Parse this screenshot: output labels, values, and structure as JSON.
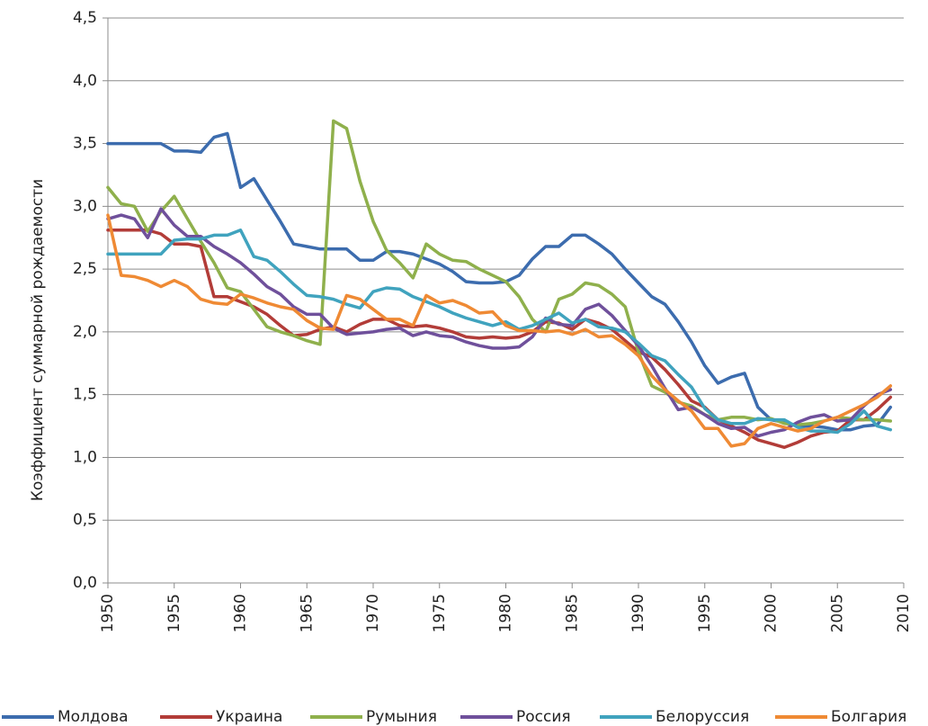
{
  "chart_data": {
    "type": "line",
    "y_label": "Коэффициент суммарной рождаемости",
    "x": [
      1950,
      1951,
      1952,
      1953,
      1954,
      1955,
      1956,
      1957,
      1958,
      1959,
      1960,
      1961,
      1962,
      1963,
      1964,
      1965,
      1966,
      1967,
      1968,
      1969,
      1970,
      1971,
      1972,
      1973,
      1974,
      1975,
      1976,
      1977,
      1978,
      1979,
      1980,
      1981,
      1982,
      1983,
      1984,
      1985,
      1986,
      1987,
      1988,
      1989,
      1990,
      1991,
      1992,
      1993,
      1994,
      1995,
      1996,
      1997,
      1998,
      1999,
      2000,
      2001,
      2002,
      2003,
      2004,
      2005,
      2006,
      2007,
      2008,
      2009
    ],
    "xlim": [
      1950,
      2010
    ],
    "xticks": [
      1950,
      1955,
      1960,
      1965,
      1970,
      1975,
      1980,
      1985,
      1990,
      1995,
      2000,
      2005,
      2010
    ],
    "ylim": [
      0,
      4.5
    ],
    "yticks": [
      {
        "value": 0,
        "label": "0,0"
      },
      {
        "value": 0.5,
        "label": "0,5"
      },
      {
        "value": 1,
        "label": "1,0"
      },
      {
        "value": 1.5,
        "label": "1,5"
      },
      {
        "value": 2,
        "label": "2,0"
      },
      {
        "value": 2.5,
        "label": "2,5"
      },
      {
        "value": 3,
        "label": "3,0"
      },
      {
        "value": 3.5,
        "label": "3,5"
      },
      {
        "value": 4,
        "label": "4,0"
      },
      {
        "value": 4.5,
        "label": "4,5"
      }
    ],
    "grid": true,
    "legend": "bottom",
    "series": [
      {
        "name": "Молдова",
        "color": "#3c6cae",
        "values": [
          3.5,
          3.5,
          3.5,
          3.5,
          3.5,
          3.44,
          3.44,
          3.43,
          3.55,
          3.58,
          3.15,
          3.22,
          3.05,
          2.88,
          2.7,
          2.68,
          2.66,
          2.66,
          2.66,
          2.57,
          2.57,
          2.64,
          2.64,
          2.62,
          2.58,
          2.54,
          2.48,
          2.4,
          2.39,
          2.39,
          2.4,
          2.45,
          2.58,
          2.68,
          2.68,
          2.77,
          2.77,
          2.7,
          2.62,
          2.5,
          2.39,
          2.28,
          2.22,
          2.08,
          1.92,
          1.73,
          1.59,
          1.64,
          1.67,
          1.4,
          1.3,
          1.28,
          1.25,
          1.25,
          1.24,
          1.22,
          1.22,
          1.25,
          1.26,
          1.4
        ]
      },
      {
        "name": "Украина",
        "color": "#b23c38",
        "values": [
          2.81,
          2.81,
          2.81,
          2.81,
          2.78,
          2.7,
          2.7,
          2.68,
          2.28,
          2.28,
          2.24,
          2.2,
          2.14,
          2.05,
          1.97,
          1.98,
          2.02,
          2.04,
          2.0,
          2.06,
          2.1,
          2.1,
          2.05,
          2.04,
          2.05,
          2.03,
          2.0,
          1.96,
          1.95,
          1.96,
          1.95,
          1.96,
          2.0,
          2.08,
          2.07,
          2.02,
          2.1,
          2.07,
          2.02,
          1.93,
          1.84,
          1.8,
          1.7,
          1.58,
          1.45,
          1.4,
          1.3,
          1.25,
          1.2,
          1.14,
          1.11,
          1.08,
          1.12,
          1.17,
          1.2,
          1.21,
          1.3,
          1.3,
          1.38,
          1.48
        ]
      },
      {
        "name": "Румыния",
        "color": "#8fb04c",
        "values": [
          3.15,
          3.02,
          3.0,
          2.8,
          2.96,
          3.08,
          2.9,
          2.72,
          2.55,
          2.35,
          2.32,
          2.18,
          2.04,
          2.0,
          1.97,
          1.93,
          1.9,
          3.68,
          3.62,
          3.2,
          2.88,
          2.65,
          2.55,
          2.43,
          2.7,
          2.62,
          2.57,
          2.56,
          2.5,
          2.45,
          2.4,
          2.28,
          2.1,
          2.0,
          2.26,
          2.3,
          2.39,
          2.37,
          2.3,
          2.2,
          1.84,
          1.57,
          1.52,
          1.44,
          1.41,
          1.34,
          1.3,
          1.32,
          1.32,
          1.3,
          1.31,
          1.27,
          1.26,
          1.27,
          1.29,
          1.32,
          1.31,
          1.3,
          1.3,
          1.29
        ]
      },
      {
        "name": "Россия",
        "color": "#6f509b",
        "values": [
          2.9,
          2.93,
          2.9,
          2.75,
          2.98,
          2.85,
          2.76,
          2.76,
          2.68,
          2.62,
          2.55,
          2.46,
          2.36,
          2.3,
          2.2,
          2.14,
          2.14,
          2.03,
          1.98,
          1.99,
          2.0,
          2.02,
          2.03,
          1.97,
          2.0,
          1.97,
          1.96,
          1.92,
          1.89,
          1.87,
          1.87,
          1.88,
          1.96,
          2.11,
          2.06,
          2.05,
          2.18,
          2.22,
          2.13,
          2.01,
          1.89,
          1.73,
          1.55,
          1.38,
          1.4,
          1.34,
          1.27,
          1.23,
          1.24,
          1.17,
          1.2,
          1.22,
          1.28,
          1.32,
          1.34,
          1.29,
          1.3,
          1.41,
          1.5,
          1.54
        ]
      },
      {
        "name": "Белоруссия",
        "color": "#40a3be",
        "values": [
          2.62,
          2.62,
          2.62,
          2.62,
          2.62,
          2.73,
          2.74,
          2.74,
          2.77,
          2.77,
          2.81,
          2.6,
          2.57,
          2.48,
          2.38,
          2.29,
          2.28,
          2.26,
          2.22,
          2.19,
          2.32,
          2.35,
          2.34,
          2.28,
          2.24,
          2.2,
          2.15,
          2.11,
          2.08,
          2.05,
          2.08,
          2.02,
          2.05,
          2.1,
          2.15,
          2.07,
          2.1,
          2.04,
          2.03,
          2.0,
          1.91,
          1.81,
          1.77,
          1.66,
          1.56,
          1.39,
          1.3,
          1.27,
          1.27,
          1.31,
          1.3,
          1.3,
          1.24,
          1.21,
          1.21,
          1.2,
          1.27,
          1.37,
          1.25,
          1.22
        ]
      },
      {
        "name": "Болгария",
        "color": "#ef8a34",
        "values": [
          2.93,
          2.45,
          2.44,
          2.41,
          2.36,
          2.41,
          2.36,
          2.26,
          2.23,
          2.22,
          2.3,
          2.27,
          2.23,
          2.2,
          2.18,
          2.09,
          2.03,
          2.02,
          2.29,
          2.26,
          2.18,
          2.1,
          2.1,
          2.05,
          2.29,
          2.23,
          2.25,
          2.21,
          2.15,
          2.16,
          2.05,
          2.01,
          2.01,
          2.0,
          2.01,
          1.98,
          2.02,
          1.96,
          1.97,
          1.9,
          1.81,
          1.65,
          1.54,
          1.45,
          1.37,
          1.23,
          1.23,
          1.09,
          1.11,
          1.23,
          1.27,
          1.24,
          1.21,
          1.23,
          1.29,
          1.32,
          1.37,
          1.42,
          1.48,
          1.57
        ]
      }
    ]
  }
}
